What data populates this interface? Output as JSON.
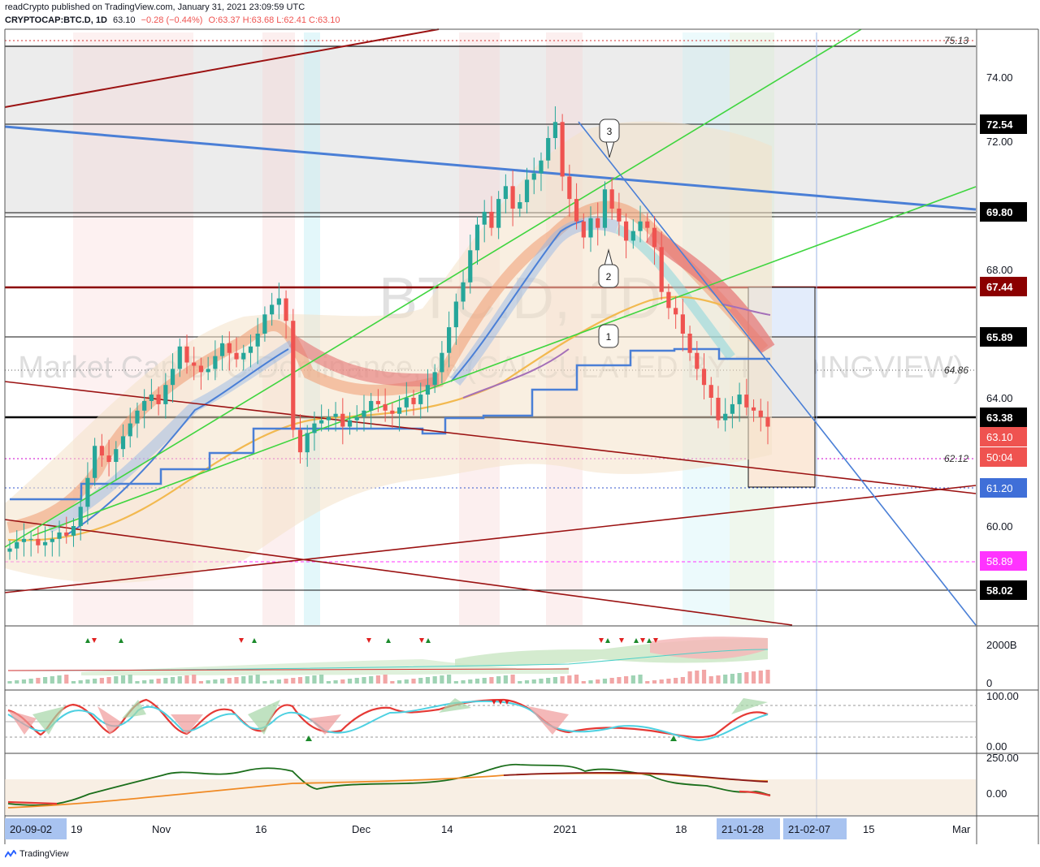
{
  "header": {
    "line1": "readCrypto published on TradingView.com, January 31, 2021 23:09:59 UTC",
    "symbol": "CRYPTOCAP:BTC.D, 1D",
    "last": "63.10",
    "change": "−0.28 (−0.44%)",
    "ohlc": "O:63.37 H:63.68 L:62.41 C:63.10"
  },
  "watermark": {
    "line1": "BTC.D, 1D",
    "line2": "Market Cap BTC Dominance, % (CALCULATED BY TRADINGVIEW)"
  },
  "colors": {
    "up": "#26a69a",
    "down": "#ef5350",
    "blue_line": "#4a7fd6",
    "green_line": "#3fd53f",
    "dark_red_line": "#9b1212",
    "orange_ma": "#f5c96a",
    "price_box": "#f05c5c"
  },
  "price_axis": {
    "ticks": [
      "74.00",
      "72.00",
      "70.00",
      "68.00",
      "64.00",
      "60.00"
    ],
    "labels": [
      {
        "text": "75.13",
        "style": "plain-italic"
      },
      {
        "text": "72.54",
        "style": "black"
      },
      {
        "text": "69.80",
        "style": "black"
      },
      {
        "text": "67.44",
        "style": "darkred"
      },
      {
        "text": "65.89",
        "style": "black"
      },
      {
        "text": "64.86",
        "style": "plain-italic"
      },
      {
        "text": "63.38",
        "style": "black"
      },
      {
        "text": "63.10",
        "style": "red"
      },
      {
        "text": "50:04",
        "style": "red"
      },
      {
        "text": "62.12",
        "style": "plain-italic"
      },
      {
        "text": "61.20",
        "style": "blue"
      },
      {
        "text": "58.89",
        "style": "magenta"
      },
      {
        "text": "58.02",
        "style": "black"
      }
    ]
  },
  "annotations": [
    "3",
    "2",
    "1"
  ],
  "volume_pane": {
    "ticks": [
      "2000B",
      "0"
    ]
  },
  "stoch_pane": {
    "ticks": [
      "100.00",
      "0.00"
    ]
  },
  "cci_pane": {
    "ticks": [
      "250.00",
      "0.00"
    ]
  },
  "time_axis": {
    "labels": [
      "19",
      "Nov",
      "16",
      "Dec",
      "14",
      "2021",
      "18",
      "15",
      "Mar"
    ],
    "highlighted": [
      "20-09-02",
      "21-01-28",
      "21-02-07"
    ]
  },
  "footer": {
    "brand": "TradingView"
  },
  "chart_data": {
    "type": "candlestick",
    "symbol": "CRYPTOCAP:BTC.D",
    "interval": "1D",
    "ylim": [
      56.5,
      75.5
    ],
    "last": {
      "open": 63.37,
      "high": 63.68,
      "low": 62.41,
      "close": 63.1
    },
    "horizontal_levels": [
      75.13,
      72.54,
      69.8,
      67.44,
      65.89,
      64.86,
      63.38,
      63.1,
      62.12,
      61.2,
      58.89,
      58.02
    ],
    "x_tick_labels": [
      "19",
      "Nov",
      "16",
      "Dec",
      "14",
      "2021",
      "18",
      "15",
      "Mar"
    ],
    "closes_approx": [
      59.3,
      59.5,
      59.6,
      59.6,
      59.4,
      59.5,
      59.6,
      59.8,
      59.7,
      60.0,
      60.6,
      61.5,
      62.5,
      62.2,
      62.0,
      62.4,
      62.8,
      63.2,
      63.6,
      63.9,
      64.1,
      63.8,
      64.4,
      64.9,
      65.6,
      65.1,
      65.0,
      64.8,
      64.9,
      65.3,
      65.7,
      65.4,
      65.2,
      65.4,
      65.6,
      66.0,
      66.6,
      66.9,
      67.1,
      66.4,
      63.0,
      62.3,
      62.9,
      63.2,
      63.3,
      63.4,
      63.5,
      63.1,
      63.3,
      63.4,
      63.6,
      63.9,
      63.8,
      63.6,
      63.5,
      63.7,
      64.0,
      63.8,
      64.1,
      64.4,
      64.8,
      65.4,
      66.2,
      67.0,
      67.6,
      68.6,
      69.4,
      69.8,
      69.3,
      70.2,
      70.6,
      69.9,
      70.1,
      70.8,
      71.0,
      71.4,
      72.1,
      72.6,
      70.9,
      70.2,
      69.5,
      69.0,
      69.6,
      69.3,
      70.5,
      69.9,
      69.5,
      68.9,
      69.2,
      69.5,
      69.3,
      68.7,
      67.3,
      66.8,
      66.6,
      66.0,
      65.4,
      64.9,
      64.4,
      64.0,
      63.3,
      63.5,
      63.8,
      64.1,
      63.7,
      63.6,
      63.4,
      63.1
    ]
  }
}
